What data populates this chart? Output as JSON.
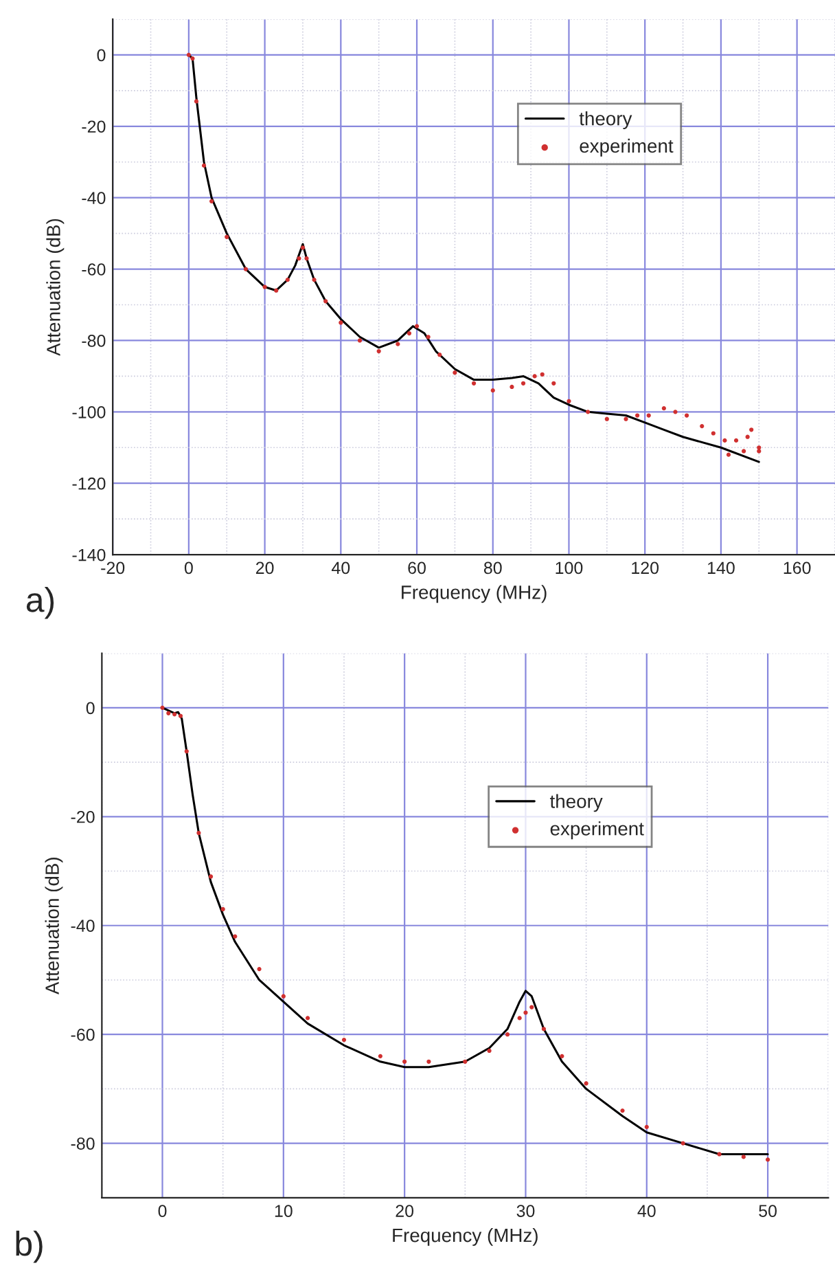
{
  "chart_data": [
    {
      "type": "line",
      "xlabel": "Frequency (MHz)",
      "ylabel": "Attenuation (dB)",
      "annotations": [
        "a)"
      ],
      "xlim": [
        -20,
        170
      ],
      "ylim": [
        -140,
        10
      ],
      "xticks": [
        -20,
        0,
        20,
        40,
        60,
        80,
        100,
        120,
        140,
        160
      ],
      "yticks": [
        -140,
        -120,
        -100,
        -80,
        -60,
        -40,
        -20,
        0
      ],
      "grid": true,
      "legend": "top right",
      "series": [
        {
          "name": "theory",
          "color": "#000000",
          "x": [
            0,
            1,
            2,
            4,
            6,
            10,
            15,
            20,
            23,
            26,
            28,
            30,
            31,
            33,
            36,
            40,
            45,
            50,
            55,
            59,
            62,
            65,
            70,
            75,
            80,
            85,
            88,
            92,
            96,
            100,
            105,
            110,
            115,
            120,
            125,
            130,
            140,
            150
          ],
          "values": [
            0,
            -1,
            -12,
            -30,
            -40,
            -50,
            -60,
            -65,
            -66,
            -63,
            -59,
            -53,
            -57,
            -63,
            -69,
            -74,
            -79,
            -82,
            -80,
            -76,
            -78,
            -83,
            -88,
            -91,
            -91,
            -90.5,
            -90,
            -92,
            -96,
            -98,
            -100,
            -100.5,
            -101,
            -103,
            -105,
            -107,
            -110,
            -114
          ]
        },
        {
          "name": "experiment",
          "type": "scatter",
          "color": "#d03030",
          "x": [
            0,
            1,
            2,
            4,
            6,
            10,
            15,
            20,
            23,
            26,
            29,
            30,
            31,
            33,
            36,
            40,
            45,
            50,
            55,
            58,
            60,
            63,
            66,
            70,
            75,
            80,
            85,
            88,
            91,
            93,
            96,
            100,
            105,
            110,
            115,
            118,
            121,
            125,
            128,
            131,
            135,
            138,
            141,
            142,
            144,
            146,
            147,
            148,
            150,
            150
          ],
          "values": [
            0,
            -1,
            -13,
            -31,
            -41,
            -51,
            -60,
            -65,
            -66,
            -63,
            -57,
            -54,
            -57,
            -63,
            -69,
            -75,
            -80,
            -83,
            -81,
            -78,
            -76,
            -79,
            -84,
            -89,
            -92,
            -94,
            -93,
            -92,
            -90,
            -89.5,
            -92,
            -97,
            -100,
            -102,
            -102,
            -101,
            -101,
            -99,
            -100,
            -101,
            -104,
            -106,
            -108,
            -112,
            -108,
            -111,
            -107,
            -105,
            -110,
            -111
          ]
        }
      ]
    },
    {
      "type": "line",
      "xlabel": "Frequency (MHz)",
      "ylabel": "Attenuation (dB)",
      "annotations": [
        "b)"
      ],
      "xlim": [
        -5,
        55
      ],
      "ylim": [
        -90,
        10
      ],
      "xticks": [
        0,
        10,
        20,
        30,
        40,
        50
      ],
      "yticks": [
        -80,
        -60,
        -40,
        -20,
        0
      ],
      "grid": true,
      "legend": "right",
      "series": [
        {
          "name": "theory",
          "color": "#000000",
          "x": [
            0,
            0.5,
            1,
            1.3,
            1.6,
            2,
            2.5,
            3,
            4,
            5,
            6,
            8,
            10,
            12,
            15,
            18,
            20,
            22,
            25,
            27,
            28.5,
            29.5,
            30,
            30.5,
            31.5,
            33,
            35,
            38,
            40,
            43,
            46,
            50
          ],
          "values": [
            0,
            -0.5,
            -1,
            -0.8,
            -2,
            -8,
            -16,
            -23,
            -32,
            -38,
            -43,
            -50,
            -54,
            -58,
            -62,
            -65,
            -66,
            -66,
            -65,
            -62.5,
            -59,
            -54,
            -52,
            -53,
            -59,
            -65,
            -70,
            -75,
            -78,
            -80,
            -82,
            -82
          ]
        },
        {
          "name": "experiment",
          "type": "scatter",
          "color": "#d03030",
          "x": [
            0,
            0.5,
            1,
            1.5,
            2,
            3,
            4,
            5,
            6,
            8,
            10,
            12,
            15,
            18,
            20,
            22,
            25,
            27,
            28.5,
            29.5,
            30,
            30.5,
            31.5,
            33,
            35,
            38,
            40,
            43,
            46,
            48,
            50
          ],
          "values": [
            0,
            -1,
            -1.2,
            -1.5,
            -8,
            -23,
            -31,
            -37,
            -42,
            -48,
            -53,
            -57,
            -61,
            -64,
            -65,
            -65,
            -65,
            -63,
            -60,
            -57,
            -56,
            -55,
            -59,
            -64,
            -69,
            -74,
            -77,
            -80,
            -82,
            -82.5,
            -83
          ]
        }
      ]
    }
  ]
}
